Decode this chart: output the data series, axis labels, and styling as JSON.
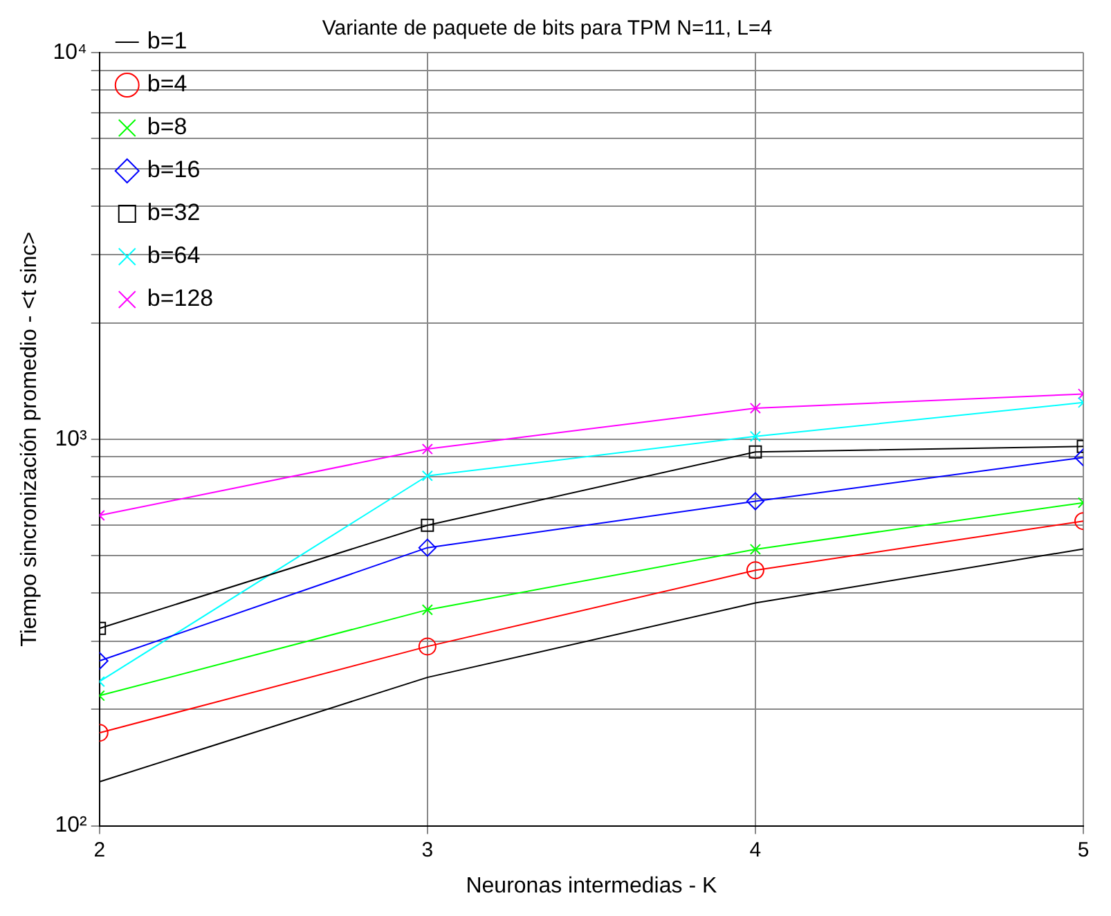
{
  "chart_data": {
    "type": "line",
    "title": "Variante de paquete de bits para TPM N=11, L=4",
    "xlabel": "Neuronas intermedias - K",
    "ylabel": "Tiempo sincronización promedio - <t sinc>",
    "x": [
      2,
      3,
      4,
      5
    ],
    "xlim": [
      2,
      5
    ],
    "xticks": [
      2,
      3,
      4,
      5
    ],
    "ylim": [
      100,
      10000
    ],
    "yticks": [
      {
        "value": 100,
        "label": "10²"
      },
      {
        "value": 200,
        "label": null
      },
      {
        "value": 300,
        "label": null
      },
      {
        "value": 400,
        "label": null
      },
      {
        "value": 500,
        "label": null
      },
      {
        "value": 600,
        "label": null
      },
      {
        "value": 700,
        "label": null
      },
      {
        "value": 800,
        "label": null
      },
      {
        "value": 900,
        "label": null
      },
      {
        "value": 1000,
        "label": "10³"
      },
      {
        "value": 2000,
        "label": null
      },
      {
        "value": 3000,
        "label": null
      },
      {
        "value": 4000,
        "label": null
      },
      {
        "value": 5000,
        "label": null
      },
      {
        "value": 6000,
        "label": null
      },
      {
        "value": 7000,
        "label": null
      },
      {
        "value": 8000,
        "label": null
      },
      {
        "value": 9000,
        "label": null
      },
      {
        "value": 10000,
        "label": "10⁴"
      }
    ],
    "log": true,
    "grid": true,
    "legend": "top left",
    "line_style": "solid",
    "series": [
      {
        "name": "b=1",
        "color": "#000000",
        "marker": "none",
        "values": [
          130,
          242,
          377,
          520
        ]
      },
      {
        "name": "b=4",
        "color": "#ff0000",
        "marker": "circle",
        "values": [
          174,
          291,
          458,
          614
        ]
      },
      {
        "name": "b=8",
        "color": "#00ff00",
        "marker": "cross",
        "values": [
          217,
          362,
          519,
          685
        ]
      },
      {
        "name": "b=16",
        "color": "#0000ff",
        "marker": "diamond",
        "values": [
          267,
          524,
          691,
          897
        ]
      },
      {
        "name": "b=32",
        "color": "#000000",
        "marker": "square",
        "values": [
          324,
          599,
          927,
          958
        ]
      },
      {
        "name": "b=64",
        "color": "#00ffff",
        "marker": "cross",
        "values": [
          236,
          804,
          1017,
          1244
        ]
      },
      {
        "name": "b=128",
        "color": "#ff00ff",
        "marker": "cross",
        "values": [
          635,
          943,
          1203,
          1309
        ]
      }
    ]
  }
}
